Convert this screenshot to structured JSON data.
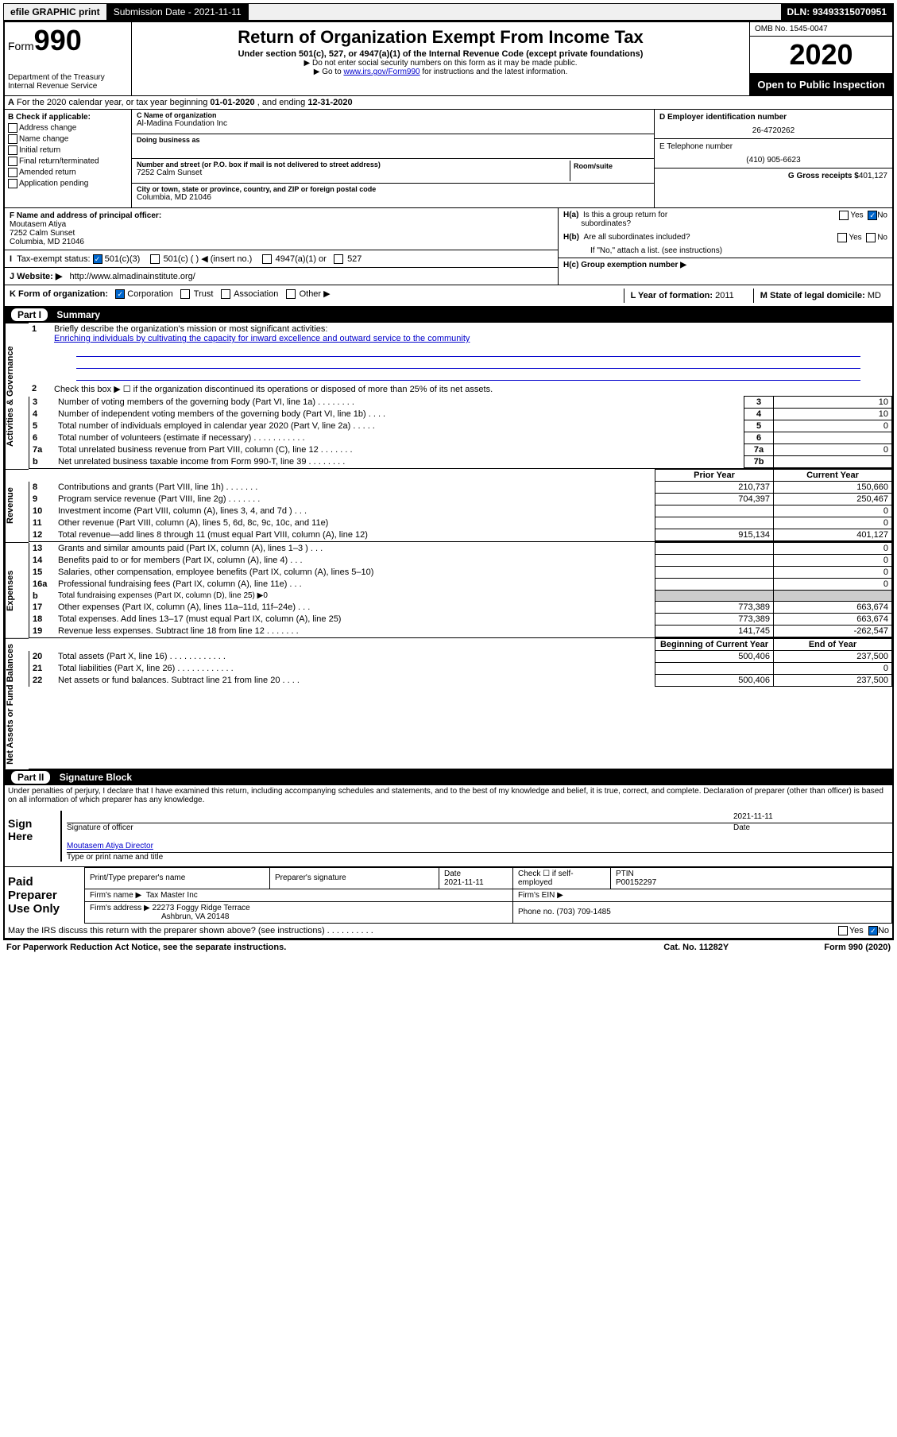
{
  "topbar": {
    "efile": "efile GRAPHIC print",
    "subdate_label": "Submission Date -",
    "subdate": "2021-11-11",
    "dln_label": "DLN:",
    "dln": "93493315070951"
  },
  "header": {
    "form_label": "Form",
    "form_num": "990",
    "dept": "Department of the Treasury\nInternal Revenue Service",
    "title": "Return of Organization Exempt From Income Tax",
    "sub1": "Under section 501(c), 527, or 4947(a)(1) of the Internal Revenue Code (except private foundations)",
    "sub2a": "▶ Do not enter social security numbers on this form as it may be made public.",
    "sub2b_pre": "▶ Go to ",
    "sub2b_link": "www.irs.gov/Form990",
    "sub2b_post": " for instructions and the latest information.",
    "omb": "OMB No. 1545-0047",
    "year": "2020",
    "inspect": "Open to Public Inspection"
  },
  "rowA": {
    "text_pre": "For the 2020 calendar year, or tax year beginning ",
    "begin": "01-01-2020",
    "text_mid": " , and ending ",
    "end": "12-31-2020"
  },
  "colB": {
    "title": "B Check if applicable:",
    "opts": [
      "Address change",
      "Name change",
      "Initial return",
      "Final return/terminated",
      "Amended return",
      "Application pending"
    ]
  },
  "colC": {
    "name_label": "C Name of organization",
    "name": "Al-Madina Foundation Inc",
    "dba_label": "Doing business as",
    "addr_label": "Number and street (or P.O. box if mail is not delivered to street address)",
    "room_label": "Room/suite",
    "addr": "7252 Calm Sunset",
    "city_label": "City or town, state or province, country, and ZIP or foreign postal code",
    "city": "Columbia, MD  21046"
  },
  "colD": {
    "ein_label": "D Employer identification number",
    "ein": "26-4720262",
    "tel_label": "E Telephone number",
    "tel": "(410) 905-6623",
    "gross_label": "G Gross receipts $",
    "gross": "401,127"
  },
  "rowF": {
    "label": "F  Name and address of principal officer:",
    "name": "Moutasem Atiya",
    "addr1": "7252 Calm Sunset",
    "addr2": "Columbia, MD  21046"
  },
  "rowH": {
    "ha": "H(a)  Is this a group return for subordinates?",
    "hb": "H(b)  Are all subordinates included?",
    "hb_note": "If \"No,\" attach a list. (see instructions)",
    "hc": "H(c)  Group exemption number ▶",
    "yes": "Yes",
    "no": "No"
  },
  "rowI": {
    "label": "Tax-exempt status:",
    "opt1": "501(c)(3)",
    "opt2": "501(c) (   ) ◀ (insert no.)",
    "opt3": "4947(a)(1) or",
    "opt4": "527"
  },
  "rowJ": {
    "label": "J  Website: ▶",
    "val": "http://www.almadinainstitute.org/"
  },
  "rowK": {
    "label": "K Form of organization:",
    "opts": [
      "Corporation",
      "Trust",
      "Association",
      "Other ▶"
    ],
    "L_label": "L Year of formation:",
    "L_val": "2011",
    "M_label": "M State of legal domicile:",
    "M_val": "MD"
  },
  "part1": {
    "bar_num": "Part I",
    "bar_title": "Summary"
  },
  "governance": {
    "label": "Activities & Governance",
    "l1_label": "Briefly describe the organization's mission or most significant activities:",
    "l1_text": "Enriching individuals by cultivating the capacity for inward excellence and outward service to the community",
    "l2": "Check this box ▶ ☐  if the organization discontinued its operations or disposed of more than 25% of its net assets.",
    "rows": [
      {
        "n": "3",
        "d": "Number of voting members of the governing body (Part VI, line 1a)   .    .    .    .    .    .    .    .",
        "c": "3",
        "v": "10"
      },
      {
        "n": "4",
        "d": "Number of independent voting members of the governing body (Part VI, line 1b)   .    .    .    .",
        "c": "4",
        "v": "10"
      },
      {
        "n": "5",
        "d": "Total number of individuals employed in calendar year 2020 (Part V, line 2a)   .    .    .    .    .",
        "c": "5",
        "v": "0"
      },
      {
        "n": "6",
        "d": "Total number of volunteers (estimate if necessary)   .    .    .    .    .    .    .    .    .    .    .",
        "c": "6",
        "v": ""
      },
      {
        "n": "7a",
        "d": "Total unrelated business revenue from Part VIII, column (C), line 12   .    .    .    .    .    .    .",
        "c": "7a",
        "v": "0"
      },
      {
        "n": "b",
        "d": "Net unrelated business taxable income from Form 990-T, line 39   .    .    .    .    .    .    .    .",
        "c": "7b",
        "v": ""
      }
    ]
  },
  "revenue": {
    "label": "Revenue",
    "header_prior": "Prior Year",
    "header_curr": "Current Year",
    "rows": [
      {
        "n": "8",
        "d": "Contributions and grants (Part VIII, line 1h)   .    .    .    .    .    .    .",
        "p": "210,737",
        "c": "150,660"
      },
      {
        "n": "9",
        "d": "Program service revenue (Part VIII, line 2g)   .    .    .    .    .    .    .",
        "p": "704,397",
        "c": "250,467"
      },
      {
        "n": "10",
        "d": "Investment income (Part VIII, column (A), lines 3, 4, and 7d )   .    .    .",
        "p": "",
        "c": "0"
      },
      {
        "n": "11",
        "d": "Other revenue (Part VIII, column (A), lines 5, 6d, 8c, 9c, 10c, and 11e)",
        "p": "",
        "c": "0"
      },
      {
        "n": "12",
        "d": "Total revenue—add lines 8 through 11 (must equal Part VIII, column (A), line 12)",
        "p": "915,134",
        "c": "401,127"
      }
    ]
  },
  "expenses": {
    "label": "Expenses",
    "rows": [
      {
        "n": "13",
        "d": "Grants and similar amounts paid (Part IX, column (A), lines 1–3 )   .    .    .",
        "p": "",
        "c": "0"
      },
      {
        "n": "14",
        "d": "Benefits paid to or for members (Part IX, column (A), line 4)   .    .    .",
        "p": "",
        "c": "0"
      },
      {
        "n": "15",
        "d": "Salaries, other compensation, employee benefits (Part IX, column (A), lines 5–10)",
        "p": "",
        "c": "0"
      },
      {
        "n": "16a",
        "d": "Professional fundraising fees (Part IX, column (A), line 11e)   .    .    .",
        "p": "",
        "c": "0"
      },
      {
        "n": "b",
        "d": "Total fundraising expenses (Part IX, column (D), line 25) ▶0",
        "p": "GRAY",
        "c": "GRAY"
      },
      {
        "n": "17",
        "d": "Other expenses (Part IX, column (A), lines 11a–11d, 11f–24e)   .    .    .",
        "p": "773,389",
        "c": "663,674"
      },
      {
        "n": "18",
        "d": "Total expenses. Add lines 13–17 (must equal Part IX, column (A), line 25)",
        "p": "773,389",
        "c": "663,674"
      },
      {
        "n": "19",
        "d": "Revenue less expenses. Subtract line 18 from line 12   .    .    .    .    .    .    .",
        "p": "141,745",
        "c": "-262,547"
      }
    ]
  },
  "netassets": {
    "label": "Net Assets or Fund Balances",
    "header_prior": "Beginning of Current Year",
    "header_curr": "End of Year",
    "rows": [
      {
        "n": "20",
        "d": "Total assets (Part X, line 16)   .    .    .    .    .    .    .    .    .    .    .    .",
        "p": "500,406",
        "c": "237,500"
      },
      {
        "n": "21",
        "d": "Total liabilities (Part X, line 26)   .    .    .    .    .    .    .    .    .    .    .    .",
        "p": "",
        "c": "0"
      },
      {
        "n": "22",
        "d": "Net assets or fund balances. Subtract line 21 from line 20   .    .    .    .",
        "p": "500,406",
        "c": "237,500"
      }
    ]
  },
  "part2": {
    "bar_num": "Part II",
    "bar_title": "Signature Block",
    "penalties": "Under penalties of perjury, I declare that I have examined this return, including accompanying schedules and statements, and to the best of my knowledge and belief, it is true, correct, and complete. Declaration of preparer (other than officer) is based on all information of which preparer has any knowledge."
  },
  "sign": {
    "label": "Sign Here",
    "sig_of": "Signature of officer",
    "date_label": "Date",
    "date": "2021-11-11",
    "name": "Moutasem Atiya  Director",
    "type_label": "Type or print name and title"
  },
  "prep": {
    "label": "Paid Preparer Use Only",
    "h1": "Print/Type preparer's name",
    "h2": "Preparer's signature",
    "h3_label": "Date",
    "h3": "2021-11-11",
    "h4_label": "Check ☐  if self-employed",
    "h5_label": "PTIN",
    "h5": "P00152297",
    "firm_label": "Firm's name    ▶",
    "firm": "Tax Master Inc",
    "ein_label": "Firm's EIN ▶",
    "addr_label": "Firm's address ▶",
    "addr1": "22273 Foggy Ridge Terrace",
    "addr2": "Ashbrun, VA  20148",
    "phone_label": "Phone no.",
    "phone": "(703) 709-1485"
  },
  "footer": {
    "discuss": "May the IRS discuss this return with the preparer shown above? (see instructions)   .     .    .    .    .    .    .    .    .    .",
    "yes": "Yes",
    "no": "No",
    "paperwork": "For Paperwork Reduction Act Notice, see the separate instructions.",
    "cat": "Cat. No. 11282Y",
    "form": "Form 990 (2020)"
  }
}
